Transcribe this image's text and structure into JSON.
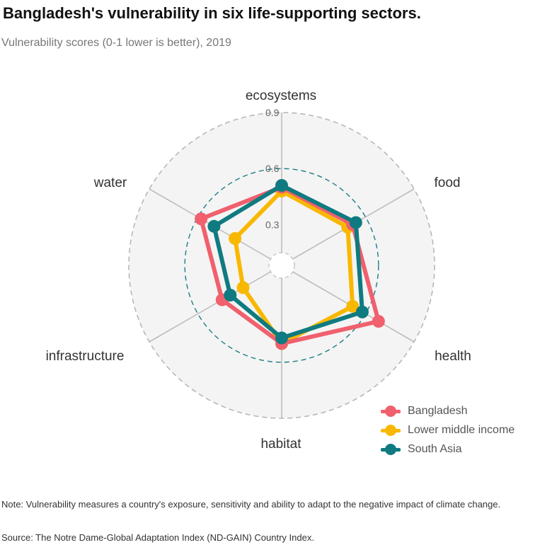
{
  "header": {
    "title": "Bangladesh's vulnerability in six life-supporting sectors.",
    "subtitle": "Vulnerability scores (0-1 lower is better), 2019"
  },
  "chart_data": {
    "type": "radar",
    "categories": [
      "ecosystems",
      "food",
      "health",
      "habitat",
      "infrastructure",
      "water"
    ],
    "radial_ticks": [
      0.3,
      0.6,
      0.9
    ],
    "rlim": [
      0.15,
      0.9
    ],
    "highlighted_ring": 0.6,
    "series": [
      {
        "name": "Bangladesh",
        "color": "#F0606D",
        "values": [
          0.5,
          0.52,
          0.68,
          0.5,
          0.45,
          0.58
        ]
      },
      {
        "name": "Lower middle income",
        "color": "#F9B800",
        "values": [
          0.48,
          0.49,
          0.52,
          0.5,
          0.32,
          0.37
        ]
      },
      {
        "name": "South Asia",
        "color": "#0F7B80",
        "values": [
          0.51,
          0.54,
          0.58,
          0.47,
          0.4,
          0.5
        ]
      }
    ]
  },
  "notes": {
    "note": "Note: Vulnerability measures a country's exposure, sensitivity and ability to adapt to the negative impact of climate change.",
    "source": "Source: The Notre Dame-Global Adaptation Index (ND-GAIN) Country Index."
  }
}
